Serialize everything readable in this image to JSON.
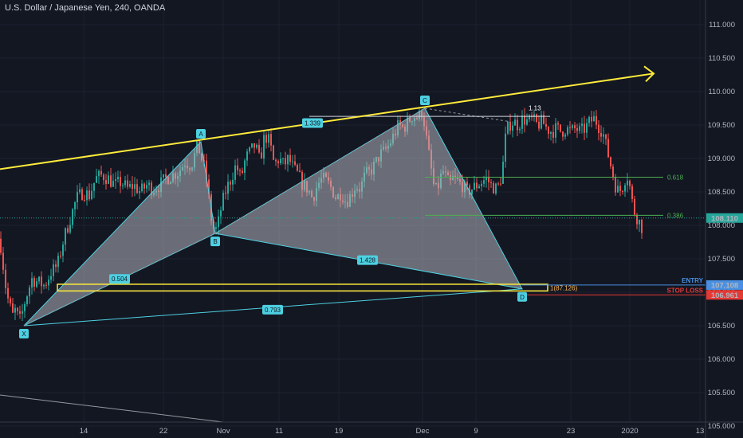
{
  "title": "U.S. Dollar / Japanese Yen, 240, OANDA",
  "colors": {
    "background": "#131722",
    "up": "#26a69a",
    "down": "#ef5350",
    "pattern_fill": "#b2b5be",
    "pattern_edge": "#4dd0e1",
    "trendline": "#ffeb3b",
    "fib": "#4caf50",
    "entry": "#4a90e2",
    "stop": "#e53935",
    "price_badge": "#26a69a"
  },
  "chart_data": {
    "type": "candlestick",
    "symbol": "USD/JPY",
    "timeframe": "240",
    "ylim": [
      104.8,
      111.3
    ],
    "y_ticks": [
      "111.000",
      "110.500",
      "110.000",
      "109.500",
      "109.000",
      "108.500",
      "108.000",
      "107.500",
      "107.000",
      "106.500",
      "106.000",
      "105.500",
      "105.000"
    ],
    "x_ticks": [
      "14",
      "22",
      "Nov",
      "11",
      "19",
      "Dec",
      "9",
      "23",
      "2020",
      "13"
    ],
    "close_path": [
      [
        0,
        107.8
      ],
      [
        4,
        107.4
      ],
      [
        8,
        107.0
      ],
      [
        12,
        106.8
      ],
      [
        16,
        106.65
      ],
      [
        20,
        106.75
      ],
      [
        24,
        106.55
      ],
      [
        28,
        106.7
      ],
      [
        32,
        106.9
      ],
      [
        40,
        107.2
      ],
      [
        48,
        107.15
      ],
      [
        56,
        107.1
      ],
      [
        64,
        107.3
      ],
      [
        72,
        107.4
      ],
      [
        80,
        107.8
      ],
      [
        88,
        108.1
      ],
      [
        96,
        108.4
      ],
      [
        104,
        108.5
      ],
      [
        112,
        108.45
      ],
      [
        120,
        108.7
      ],
      [
        128,
        108.75
      ],
      [
        136,
        108.7
      ],
      [
        144,
        108.6
      ],
      [
        152,
        108.65
      ],
      [
        160,
        108.55
      ],
      [
        168,
        108.6
      ],
      [
        176,
        108.5
      ],
      [
        184,
        108.6
      ],
      [
        192,
        108.55
      ],
      [
        200,
        108.6
      ],
      [
        208,
        108.7
      ],
      [
        216,
        108.75
      ],
      [
        224,
        108.8
      ],
      [
        232,
        108.95
      ],
      [
        240,
        108.9
      ],
      [
        248,
        109.2
      ],
      [
        254,
        108.95
      ],
      [
        258,
        108.8
      ],
      [
        262,
        108.4
      ],
      [
        266,
        108.0
      ],
      [
        270,
        107.9
      ],
      [
        274,
        108.05
      ],
      [
        278,
        108.3
      ],
      [
        284,
        108.55
      ],
      [
        290,
        108.7
      ],
      [
        296,
        108.9
      ],
      [
        302,
        108.7
      ],
      [
        308,
        109.0
      ],
      [
        314,
        109.1
      ],
      [
        320,
        109.2
      ],
      [
        326,
        108.95
      ],
      [
        332,
        109.35
      ],
      [
        338,
        109.25
      ],
      [
        344,
        108.9
      ],
      [
        350,
        109.0
      ],
      [
        356,
        108.9
      ],
      [
        362,
        109.0
      ],
      [
        368,
        108.85
      ],
      [
        374,
        108.75
      ],
      [
        380,
        108.6
      ],
      [
        386,
        108.55
      ],
      [
        392,
        108.4
      ],
      [
        398,
        108.6
      ],
      [
        404,
        108.7
      ],
      [
        410,
        108.65
      ],
      [
        416,
        108.55
      ],
      [
        422,
        108.4
      ],
      [
        428,
        108.5
      ],
      [
        434,
        108.35
      ],
      [
        440,
        108.45
      ],
      [
        446,
        108.6
      ],
      [
        452,
        108.55
      ],
      [
        458,
        108.75
      ],
      [
        464,
        108.8
      ],
      [
        470,
        108.9
      ],
      [
        476,
        109.05
      ],
      [
        482,
        109.1
      ],
      [
        488,
        109.2
      ],
      [
        494,
        109.35
      ],
      [
        500,
        109.5
      ],
      [
        506,
        109.45
      ],
      [
        512,
        109.55
      ],
      [
        518,
        109.65
      ],
      [
        524,
        109.6
      ],
      [
        530,
        109.72
      ],
      [
        536,
        109.2
      ],
      [
        540,
        108.9
      ],
      [
        544,
        108.6
      ],
      [
        548,
        108.5
      ],
      [
        552,
        108.7
      ],
      [
        556,
        108.8
      ],
      [
        560,
        108.7
      ],
      [
        564,
        108.6
      ],
      [
        568,
        108.7
      ],
      [
        574,
        108.65
      ],
      [
        580,
        108.6
      ],
      [
        586,
        108.5
      ],
      [
        592,
        108.55
      ],
      [
        598,
        108.6
      ],
      [
        604,
        108.65
      ],
      [
        610,
        108.7
      ],
      [
        616,
        108.6
      ],
      [
        622,
        108.55
      ],
      [
        626,
        108.6
      ],
      [
        630,
        108.8
      ],
      [
        634,
        109.3
      ],
      [
        638,
        109.5
      ],
      [
        644,
        109.55
      ],
      [
        650,
        109.5
      ],
      [
        656,
        109.6
      ],
      [
        662,
        109.55
      ],
      [
        668,
        109.58
      ],
      [
        674,
        109.5
      ],
      [
        680,
        109.55
      ],
      [
        686,
        109.45
      ],
      [
        692,
        109.4
      ],
      [
        698,
        109.45
      ],
      [
        704,
        109.4
      ],
      [
        710,
        109.45
      ],
      [
        716,
        109.4
      ],
      [
        722,
        109.45
      ],
      [
        728,
        109.4
      ],
      [
        734,
        109.45
      ],
      [
        740,
        109.55
      ],
      [
        746,
        109.6
      ],
      [
        750,
        109.5
      ],
      [
        756,
        109.4
      ],
      [
        760,
        109.2
      ],
      [
        764,
        109.0
      ],
      [
        768,
        108.8
      ],
      [
        772,
        108.6
      ],
      [
        776,
        108.5
      ],
      [
        780,
        108.55
      ],
      [
        784,
        108.7
      ],
      [
        788,
        108.75
      ],
      [
        792,
        108.4
      ],
      [
        796,
        108.2
      ],
      [
        800,
        108.1
      ],
      [
        806,
        107.95
      ]
    ],
    "last_price": "108.110",
    "pattern": {
      "name": "harmonic XABCD",
      "points": [
        {
          "label": "X",
          "x": 30,
          "price": 106.5
        },
        {
          "label": "A",
          "x": 252,
          "price": 109.25
        },
        {
          "label": "B",
          "x": 270,
          "price": 107.88
        },
        {
          "label": "C",
          "x": 533,
          "price": 109.75
        },
        {
          "label": "D",
          "x": 655,
          "price": 107.05
        }
      ],
      "ratios": [
        {
          "label": "0.504",
          "from": "A",
          "to": "X-D"
        },
        {
          "label": "1.339",
          "from": "B",
          "to": "C"
        },
        {
          "label": "1.428",
          "from": "B",
          "to": "D"
        },
        {
          "label": "0.793",
          "from": "X",
          "to": "D"
        }
      ],
      "extension_label": "1.13",
      "d_label": "1(87.126)"
    },
    "fib_levels": [
      {
        "label": "0.618",
        "price": 108.72
      },
      {
        "label": "0.386",
        "price": 108.15
      }
    ],
    "levels": [
      {
        "label": "ENTRY",
        "price": 107.108,
        "price_label": "107.108"
      },
      {
        "label": "STOP LOSS",
        "price": 106.961,
        "price_label": "106.961"
      }
    ],
    "trendline": {
      "x_start": 0,
      "price_start": 108.84,
      "x_end": 820,
      "price_end": 110.27
    }
  }
}
